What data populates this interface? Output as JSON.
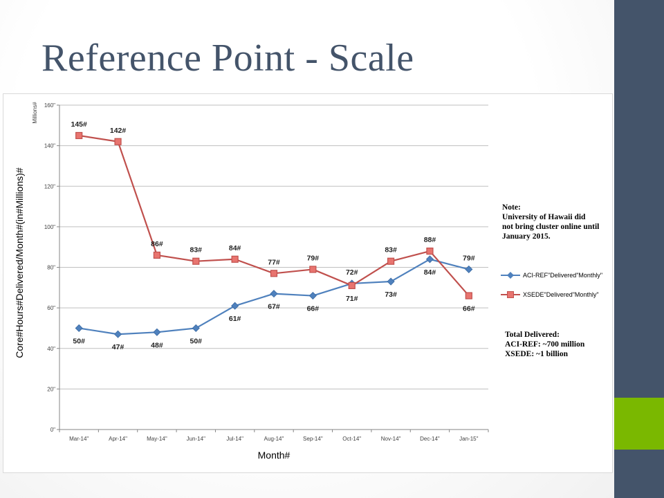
{
  "slide": {
    "title": "Reference Point - Scale",
    "colors": {
      "sidebar": "#44546a",
      "accent": "#7ab800",
      "title": "#44546a"
    }
  },
  "note": {
    "lines": [
      "Note:",
      "University of Hawaii did",
      "not bring cluster online until",
      "January 2015."
    ]
  },
  "total": {
    "lines": [
      "Total Delivered:",
      "ACI-REF: ~700 million",
      "XSEDE: ~1 billion"
    ]
  },
  "chart_data": {
    "type": "line",
    "categories": [
      "Mar-14",
      "Apr-14",
      "May-14",
      "Jun-14",
      "Jul-14",
      "Aug-14",
      "Sep-14",
      "Oct-14",
      "Nov-14",
      "Dec-14",
      "Jan-15"
    ],
    "category_tick_labels": [
      "Mar‐14\"",
      "Apr‐14\"",
      "May‐14\"",
      "Jun‐14\"",
      "Jul‐14\"",
      "Aug‐14\"",
      "Sep‐14\"",
      "Oct‐14\"",
      "Nov‐14\"",
      "Dec‐14\"",
      "Jan‐15\""
    ],
    "series": [
      {
        "name": "ACI-REF\"Delivered\"Monthly\"",
        "color": "#4f81bd",
        "marker": "diamond",
        "values": [
          50,
          47,
          48,
          50,
          61,
          67,
          66,
          72,
          73,
          84,
          79
        ],
        "labels": [
          "50#",
          "47#",
          "48#",
          "50#",
          "61#",
          "67#",
          "66#",
          "72#",
          "73#",
          "84#",
          ""
        ]
      },
      {
        "name": "XSEDE\"Delivered\"Monthly\"",
        "color": "#c0504d",
        "marker": "square",
        "values": [
          145,
          142,
          86,
          83,
          84,
          77,
          79,
          71,
          83,
          88,
          66
        ],
        "labels": [
          "145#",
          "142#",
          "86#",
          "83#",
          "84#",
          "77#",
          "79#",
          "71#",
          "83#",
          "88#",
          "66#"
        ]
      }
    ],
    "extra_labels": [
      {
        "text": "79#",
        "category_index": 10,
        "series_index": 0
      }
    ],
    "ylim": [
      0,
      160
    ],
    "yticks": [
      0,
      20,
      40,
      60,
      80,
      100,
      120,
      140,
      160
    ],
    "ytick_labels": [
      "0\"",
      "20\"",
      "40\"",
      "60\"",
      "80\"",
      "100\"",
      "120\"",
      "140\"",
      "160\""
    ],
    "ylabel": "Core#Hours#Delivered/Month#(in#Millions)#",
    "yunit": "Millions#",
    "xlabel": "Month#",
    "grid": true,
    "legend_position": "right"
  }
}
